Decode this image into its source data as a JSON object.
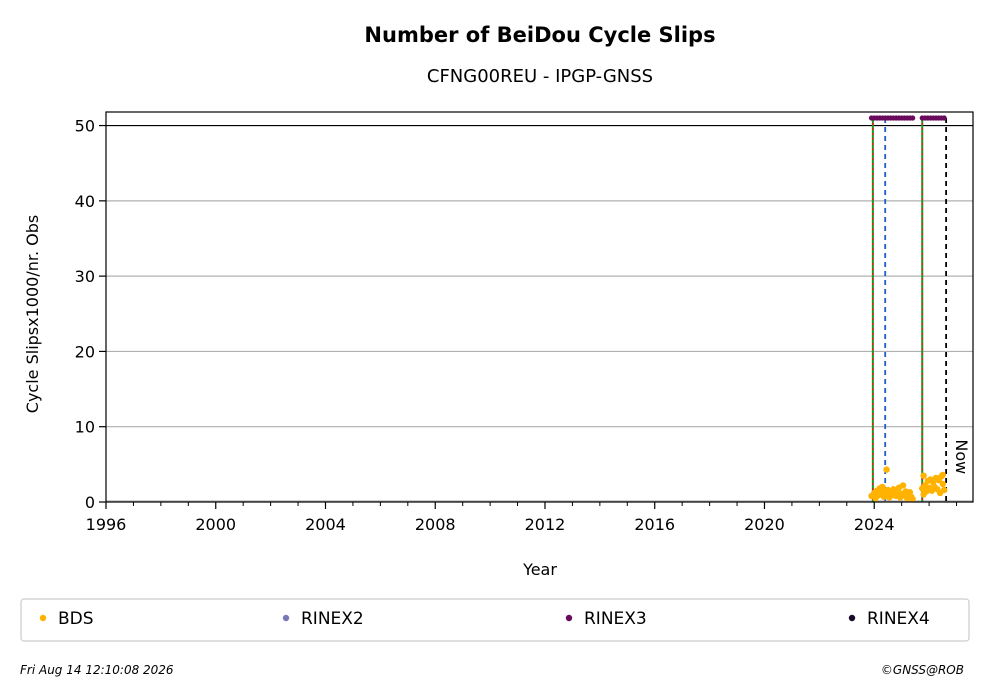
{
  "chart_data": {
    "type": "scatter",
    "title": "Number of BeiDou Cycle Slips",
    "subtitle": "CFNG00REU - IPGP-GNSS",
    "xlabel": "Year",
    "ylabel": "Cycle Slipsx1000/nr. Obs",
    "xlim": [
      1996,
      2027.6
    ],
    "ylim": [
      0,
      51.8
    ],
    "x_ticks": [
      1996,
      2000,
      2004,
      2008,
      2012,
      2016,
      2020,
      2024
    ],
    "y_ticks": [
      0,
      10,
      20,
      30,
      40,
      50
    ],
    "grid": "horizontal",
    "reference_line_y": 50,
    "series": [
      {
        "name": "BDS",
        "color": "#ffb300",
        "x": [
          2023.9,
          2024.0,
          2024.05,
          2024.1,
          2024.15,
          2024.2,
          2024.25,
          2024.3,
          2024.35,
          2024.4,
          2024.45,
          2024.5,
          2024.55,
          2024.6,
          2024.65,
          2024.7,
          2024.75,
          2024.8,
          2024.85,
          2024.9,
          2024.95,
          2025.0,
          2025.05,
          2025.1,
          2025.15,
          2025.2,
          2025.25,
          2025.3,
          2025.35,
          2025.4,
          2024.45,
          2025.75,
          2025.8,
          2025.85,
          2025.9,
          2025.95,
          2026.0,
          2026.05,
          2026.1,
          2026.15,
          2026.2,
          2026.25,
          2026.3,
          2026.35,
          2026.4,
          2026.45,
          2026.5,
          2026.55,
          2025.8,
          2026.5
        ],
        "y": [
          0.8,
          1.2,
          0.5,
          1.5,
          0.9,
          1.8,
          1.1,
          2.0,
          0.7,
          1.4,
          1.0,
          1.6,
          0.6,
          1.3,
          0.9,
          1.7,
          1.2,
          0.8,
          1.5,
          1.9,
          0.6,
          1.1,
          2.2,
          0.9,
          1.4,
          0.5,
          1.0,
          1.3,
          0.7,
          0.4,
          4.3,
          1.8,
          3.5,
          2.2,
          1.4,
          2.8,
          1.9,
          3.0,
          1.5,
          2.6,
          2.0,
          3.2,
          1.7,
          2.9,
          1.2,
          3.4,
          2.4,
          1.6,
          1.0,
          3.6
        ]
      },
      {
        "name": "RINEX2",
        "color": "#7b78b9",
        "x": [],
        "y": []
      },
      {
        "name": "RINEX3",
        "color": "#6a0a5c",
        "x": [
          2023.9,
          2024.0,
          2024.1,
          2024.2,
          2024.3,
          2024.4,
          2024.5,
          2024.6,
          2024.7,
          2024.8,
          2024.9,
          2025.0,
          2025.1,
          2025.2,
          2025.3,
          2025.4,
          2025.75,
          2025.85,
          2025.95,
          2026.05,
          2026.15,
          2026.25,
          2026.35,
          2026.45,
          2026.55
        ],
        "y": [
          51.0,
          51.0,
          51.0,
          51.0,
          51.0,
          51.0,
          51.0,
          51.0,
          51.0,
          51.0,
          51.0,
          51.0,
          51.0,
          51.0,
          51.0,
          51.0,
          51.0,
          51.0,
          51.0,
          51.0,
          51.0,
          51.0,
          51.0,
          51.0,
          51.0
        ]
      },
      {
        "name": "RINEX4",
        "color": "#1a0a2a",
        "x": [],
        "y": []
      }
    ],
    "vertical_lines": [
      {
        "x": 2023.95,
        "style": "green-red-dotted"
      },
      {
        "x": 2024.4,
        "style": "blue-dashed"
      },
      {
        "x": 2025.75,
        "style": "green-red-dotted"
      },
      {
        "x": 2026.62,
        "style": "black-dashed",
        "label": "Now"
      }
    ],
    "legend_placement": "bottom"
  },
  "footer": {
    "timestamp": "Fri Aug 14 12:10:08 2026",
    "copyright": "©GNSS@ROB"
  }
}
